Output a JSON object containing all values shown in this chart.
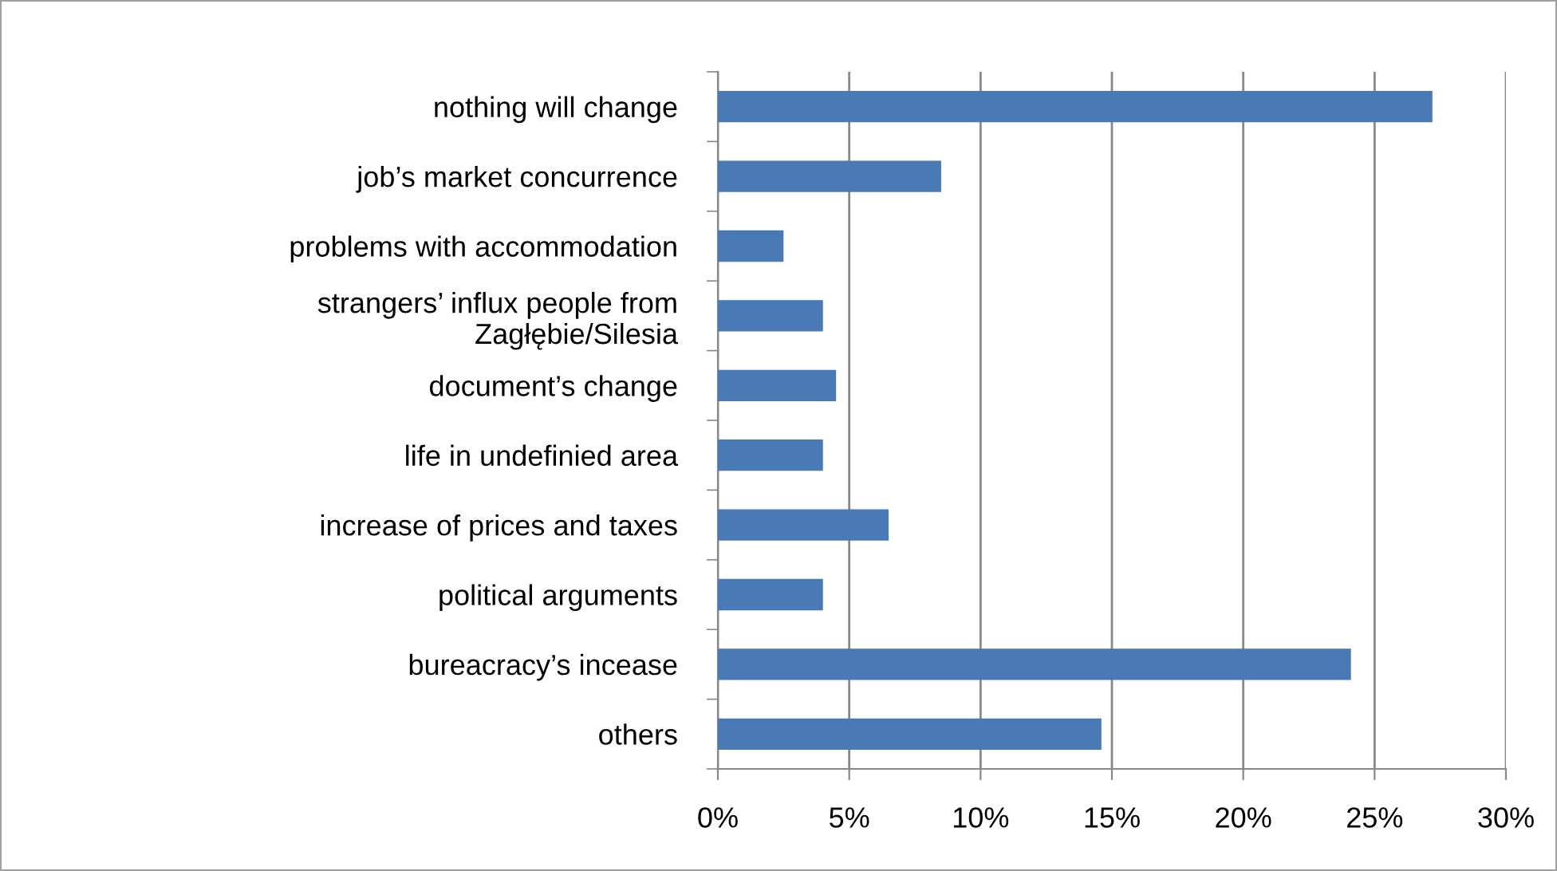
{
  "chart_data": {
    "type": "bar",
    "orientation": "horizontal",
    "categories": [
      "nothing will change",
      "job’s market concurrence",
      "problems with accommodation",
      "strangers’ influx people from\nZagłębie/Silesia",
      "document’s change",
      "life in undefinied area",
      "increase of prices and taxes",
      "political arguments",
      "bureacracy’s incease",
      "others"
    ],
    "values": [
      27.2,
      8.5,
      2.5,
      4.0,
      4.5,
      4.0,
      6.5,
      4.0,
      24.1,
      14.6
    ],
    "color": "#4a7ab5",
    "xlim": [
      0,
      30
    ],
    "xticks": [
      {
        "value": 0,
        "label": "0%"
      },
      {
        "value": 5,
        "label": "5%"
      },
      {
        "value": 10,
        "label": "10%"
      },
      {
        "value": 15,
        "label": "15%"
      },
      {
        "value": 20,
        "label": "20%"
      },
      {
        "value": 25,
        "label": "25%"
      },
      {
        "value": 30,
        "label": "30%"
      }
    ],
    "grid": "x",
    "legend": false
  }
}
